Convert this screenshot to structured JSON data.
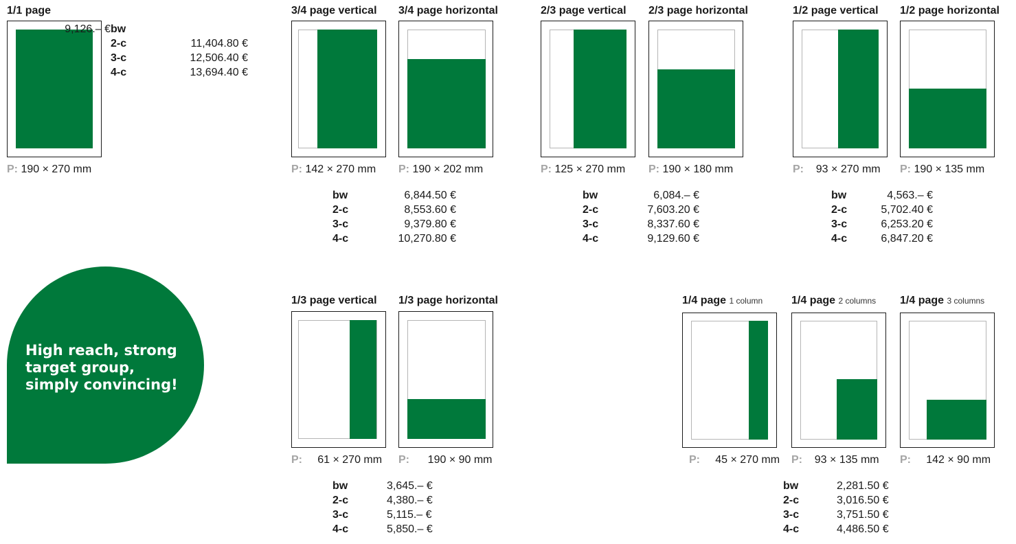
{
  "colors": {
    "fill": "#00793b",
    "frame": "#1a1a1a",
    "inner_frame": "#b5b5b5",
    "dim_prefix": "#a5a5a5"
  },
  "formats": {
    "full": {
      "title": "1/1 page",
      "dim_prefix": "P:",
      "dim": "190 × 270 mm"
    },
    "three_quarter_v": {
      "title": "3/4 page vertical",
      "dim_prefix": "P:",
      "dim": "142 × 270 mm"
    },
    "three_quarter_h": {
      "title": "3/4 page horizontal",
      "dim_prefix": "P:",
      "dim": "190 × 202 mm"
    },
    "two_third_v": {
      "title": "2/3 page vertical",
      "dim_prefix": "P:",
      "dim": "125 × 270 mm"
    },
    "two_third_h": {
      "title": "2/3 page horizontal",
      "dim_prefix": "P:",
      "dim": "190 × 180 mm"
    },
    "half_v": {
      "title": "1/2 page vertical",
      "dim_prefix": "P:",
      "dim": "93 × 270 mm"
    },
    "half_h": {
      "title": "1/2 page horizontal",
      "dim_prefix": "P:",
      "dim": "190 × 135 mm"
    },
    "third_v": {
      "title": "1/3 page vertical",
      "dim_prefix": "P:",
      "dim": "61 × 270 mm"
    },
    "third_h": {
      "title": "1/3 page horizontal",
      "dim_prefix": "P:",
      "dim": "190 × 90 mm"
    },
    "quarter_1": {
      "title": "1/4 page",
      "sub": "1 column",
      "dim_prefix": "P:",
      "dim": "45 × 270 mm"
    },
    "quarter_2": {
      "title": "1/4 page",
      "sub": "2 columns",
      "dim_prefix": "P:",
      "dim": "93 × 135 mm"
    },
    "quarter_3": {
      "title": "1/4 page",
      "sub": "3 columns",
      "dim_prefix": "P:",
      "dim": "142 × 90 mm"
    }
  },
  "prices": {
    "full": [
      {
        "label": "bw",
        "value": "9,126.– €"
      },
      {
        "label": "2-c",
        "value": "11,404.80 €"
      },
      {
        "label": "3-c",
        "value": "12,506.40 €"
      },
      {
        "label": "4-c",
        "value": "13,694.40 €"
      }
    ],
    "three_quarter": [
      {
        "label": "bw",
        "value": "6,844.50 €"
      },
      {
        "label": "2-c",
        "value": "8,553.60 €"
      },
      {
        "label": "3-c",
        "value": "9,379.80 €"
      },
      {
        "label": "4-c",
        "value": "10,270.80 €"
      }
    ],
    "two_third": [
      {
        "label": "bw",
        "value": "6,084.– €"
      },
      {
        "label": "2-c",
        "value": "7,603.20 €"
      },
      {
        "label": "3-c",
        "value": "8,337.60 €"
      },
      {
        "label": "4-c",
        "value": "9,129.60 €"
      }
    ],
    "half": [
      {
        "label": "bw",
        "value": "4,563.– €"
      },
      {
        "label": "2-c",
        "value": "5,702.40 €"
      },
      {
        "label": "3-c",
        "value": "6,253.20 €"
      },
      {
        "label": "4-c",
        "value": "6,847.20 €"
      }
    ],
    "third": [
      {
        "label": "bw",
        "value": "3,645.– €"
      },
      {
        "label": "2-c",
        "value": "4,380.– €"
      },
      {
        "label": "3-c",
        "value": "5,115.– €"
      },
      {
        "label": "4-c",
        "value": "5,850.– €"
      }
    ],
    "quarter": [
      {
        "label": "bw",
        "value": "2,281.50 €"
      },
      {
        "label": "2-c",
        "value": "3,016.50 €"
      },
      {
        "label": "3-c",
        "value": "3,751.50 €"
      },
      {
        "label": "4-c",
        "value": "4,486.50 €"
      }
    ]
  },
  "badge": {
    "lines": [
      "High reach, strong",
      "target group,",
      "simply convincing!"
    ]
  }
}
